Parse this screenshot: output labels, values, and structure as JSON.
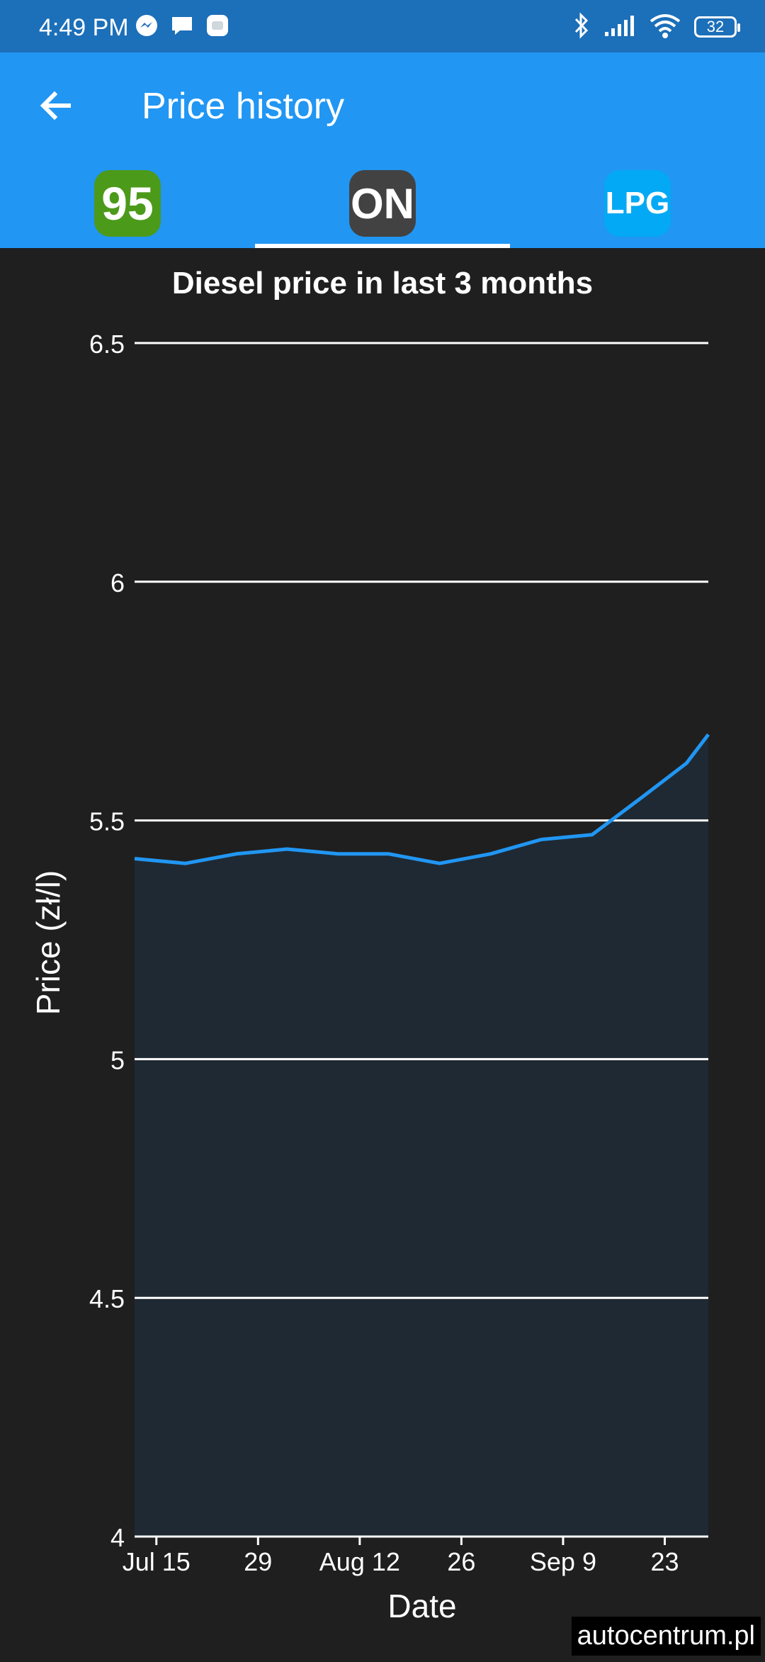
{
  "status_bar": {
    "time": "4:49 PM",
    "battery": "32",
    "icons": [
      "messenger-icon",
      "chat-icon",
      "app-icon",
      "bluetooth-icon",
      "signal-icon",
      "wifi-icon",
      "battery-icon"
    ]
  },
  "app_bar": {
    "title": "Price history",
    "back_icon": "arrow-left-icon",
    "background": "#2196f3"
  },
  "tabs": [
    {
      "label": "95",
      "color": "#4c9a1a",
      "selected": false
    },
    {
      "label": "ON",
      "color": "#424242",
      "selected": true
    },
    {
      "label": "LPG",
      "color": "#03a9f4",
      "selected": false
    }
  ],
  "chart_data": {
    "type": "area",
    "title": "Diesel price in last 3 months",
    "xlabel": "Date",
    "ylabel": "Price (zł/l)",
    "ylim": [
      4,
      6.5
    ],
    "yticks": [
      4,
      4.5,
      5,
      5.5,
      6,
      6.5
    ],
    "ytick_labels": [
      "4",
      "4.5",
      "5",
      "5.5",
      "6",
      "6.5"
    ],
    "xlim": [
      "2024-07-12",
      "2024-09-29"
    ],
    "xticks": [
      "2024-07-15",
      "2024-07-29",
      "2024-08-12",
      "2024-08-26",
      "2024-09-09",
      "2024-09-23"
    ],
    "xtick_labels": [
      "Jul 15",
      "29",
      "Aug 12",
      "26",
      "Sep 9",
      "23"
    ],
    "grid": true,
    "line_color": "#2196f3",
    "fill_color": "#1f2933",
    "series": [
      {
        "x": [
          "2024-07-12",
          "2024-07-19",
          "2024-07-26",
          "2024-08-02",
          "2024-08-09",
          "2024-08-16",
          "2024-08-23",
          "2024-08-30",
          "2024-09-06",
          "2024-09-13",
          "2024-09-20",
          "2024-09-26",
          "2024-09-29"
        ],
        "values": [
          5.42,
          5.41,
          5.43,
          5.44,
          5.43,
          5.43,
          5.41,
          5.43,
          5.46,
          5.47,
          5.55,
          5.62,
          5.68
        ]
      }
    ]
  },
  "watermark": "autocentrum.pl"
}
